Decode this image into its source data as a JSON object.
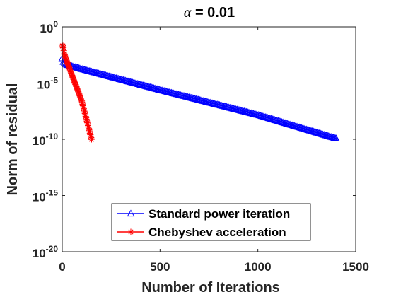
{
  "chart_data": {
    "type": "line",
    "title_symbol": "α",
    "title_rest": " = 0.01",
    "xlabel": "Number of Iterations",
    "ylabel": "Norm of residual",
    "xlim": [
      0,
      1500
    ],
    "ylim_log10": [
      -20,
      0
    ],
    "yscale": "log",
    "grid": false,
    "legend_position": "lower-center",
    "x_tick_labels": [
      "0",
      "500",
      "1000",
      "1500"
    ],
    "x_tick_values": [
      0,
      500,
      1000,
      1500
    ],
    "y_tick_base": "10",
    "y_tick_exponents": [
      "0",
      "-5",
      "-10",
      "-15",
      "-20"
    ],
    "series": [
      {
        "name": "Standard power iteration",
        "color": "#0000ff",
        "marker": "triangle",
        "points": [
          [
            0,
            0.0016
          ],
          [
            5,
            0.0008
          ],
          [
            20,
            0.00045
          ],
          [
            100,
            0.00018
          ],
          [
            500,
            2.5e-06
          ],
          [
            1000,
            1.5e-08
          ],
          [
            1400,
            1.2e-10
          ]
        ]
      },
      {
        "name": "Chebyshev  acceleration",
        "color": "#ff0000",
        "marker": "star",
        "points": [
          [
            0,
            0.02
          ],
          [
            5,
            0.02
          ],
          [
            10,
            0.004
          ],
          [
            50,
            5e-05
          ],
          [
            100,
            2.5e-07
          ],
          [
            150,
            1e-10
          ]
        ]
      }
    ]
  }
}
